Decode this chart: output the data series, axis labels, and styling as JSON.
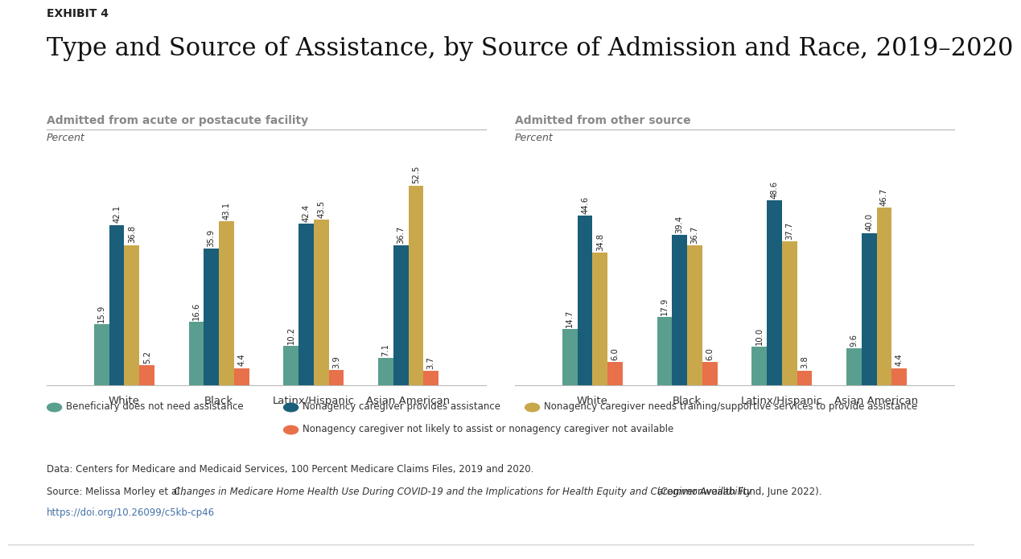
{
  "title": "Type and Source of Assistance, by Source of Admission and Race, 2019–2020",
  "exhibit_label": "EXHIBIT 4",
  "left_panel_title": "Admitted from acute or postacute facility",
  "right_panel_title": "Admitted from other source",
  "percent_label": "Percent",
  "categories": [
    "White",
    "Black",
    "Latinx/Hispanic",
    "Asian American"
  ],
  "colors": {
    "green": "#5a9e8f",
    "blue": "#1a5e7a",
    "gold": "#c9a84c",
    "red": "#e8704a"
  },
  "left_data": {
    "green": [
      15.9,
      16.6,
      10.2,
      7.1
    ],
    "blue": [
      42.1,
      35.9,
      42.4,
      36.7
    ],
    "gold": [
      36.8,
      43.1,
      43.5,
      52.5
    ],
    "red": [
      5.2,
      4.4,
      3.9,
      3.7
    ]
  },
  "right_data": {
    "green": [
      14.7,
      17.9,
      10.0,
      9.6
    ],
    "blue": [
      44.6,
      39.4,
      48.6,
      40.0
    ],
    "gold": [
      34.8,
      36.7,
      37.7,
      46.7
    ],
    "red": [
      6.0,
      6.0,
      3.8,
      4.4
    ]
  },
  "legend_labels": [
    "Beneficiary does not need assistance",
    "Nonagency caregiver provides assistance",
    "Nonagency caregiver needs training/supportive services to provide assistance",
    "Nonagency caregiver not likely to assist or nonagency caregiver not available"
  ],
  "footer_data": "Data: Centers for Medicare and Medicaid Services, 100 Percent Medicare Claims Files, 2019 and 2020.",
  "footer_source_normal1": "Source: Melissa Morley et al., ",
  "footer_source_italic": "Changes in Medicare Home Health Use During COVID-19 and the Implications for Health Equity and Caregiver Availability",
  "footer_source_normal2": " (Commonwealth Fund, June 2022).",
  "footer_url": "https://doi.org/10.26099/c5kb-cp46"
}
